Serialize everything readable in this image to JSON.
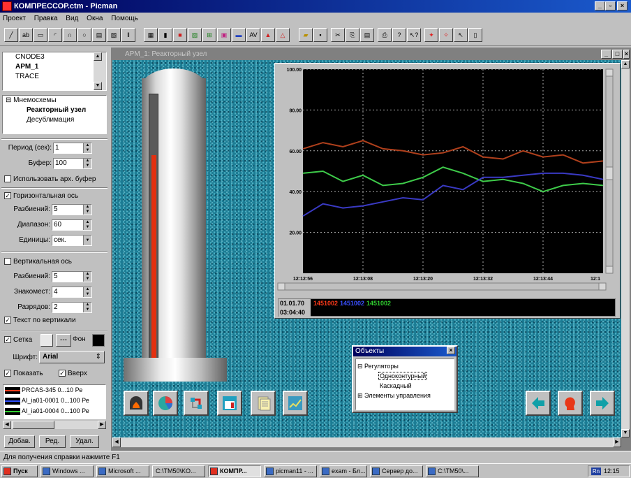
{
  "window": {
    "title": "КОМПРЕССОР.ctm - Picman"
  },
  "menu": [
    "Проект",
    "Правка",
    "Вид",
    "Окна",
    "Помощь"
  ],
  "toolbar_icons": [
    "line",
    "text",
    "rect",
    "arc",
    "curve",
    "ellipse",
    "button",
    "image",
    "bars",
    "grid",
    "panel",
    "meter",
    "chart",
    "layout",
    "indicator",
    "scale",
    "clock",
    "alarm",
    "open",
    "save",
    "cut",
    "copy",
    "paste",
    "print",
    "help",
    "context-help",
    "run",
    "stop",
    "select",
    "page"
  ],
  "tree_nodes": [
    "CNODE3",
    "APM_1",
    "TRACE"
  ],
  "mnemo": {
    "root": "Мнемосхемы",
    "items": [
      "Реакторный узел",
      "Десублимация"
    ]
  },
  "settings": {
    "period_label": "Период (сек):",
    "period_value": "1",
    "buffer_label": "Буфер:",
    "buffer_value": "100",
    "use_arch_buffer": "Использовать арх. буфер",
    "horizontal_axis": "Горизонтальная ось",
    "h_divisions_label": "Разбиений:",
    "h_divisions_value": "5",
    "range_label": "Диапазон:",
    "range_value": "60",
    "units_label": "Единицы:",
    "units_value": "сек.",
    "vertical_axis": "Вертикальная ось",
    "v_divisions_label": "Разбиений:",
    "v_divisions_value": "5",
    "digits_label": "Знакомест:",
    "digits_value": "4",
    "decimals_label": "Разрядов:",
    "decimals_value": "2",
    "text_vertical": "Текст по вертикали",
    "grid_label": "Сетка",
    "grid_style": "---",
    "bg_label": "Фон",
    "font_label": "Шрифт:",
    "font_value": "Arial",
    "show_label": "Показать",
    "top_label": "Вверх"
  },
  "series_list": [
    {
      "tag": "PRCAS-345",
      "range": "0...10",
      "unit": "Ре",
      "color": "#ff3a1a"
    },
    {
      "tag": "AI_ia01-0001",
      "range": "0...100",
      "unit": "Ре",
      "color": "#3050ff"
    },
    {
      "tag": "AI_ia01-0004",
      "range": "0...100",
      "unit": "Ре",
      "color": "#30d030"
    }
  ],
  "panel_buttons": [
    "Добав.",
    "Ред.",
    "Удал."
  ],
  "mdi_title": "APM_1: Реакторный узел",
  "tank": {
    "level": 0.78
  },
  "chart_data": {
    "type": "line",
    "ylim": [
      0,
      100
    ],
    "yticks": [
      "100.00",
      "80.00",
      "60.00",
      "40.00",
      "20.00"
    ],
    "xticks": [
      "12:12:56",
      "12:13:08",
      "12:13:20",
      "12:13:32",
      "12:13:44",
      "12:1"
    ],
    "grid": true,
    "series": [
      {
        "color": "#b0401c",
        "values": [
          61,
          64,
          62,
          65,
          61,
          60,
          58,
          59,
          62,
          57,
          56,
          60,
          57,
          58,
          54,
          55
        ]
      },
      {
        "color": "#3ecb4a",
        "values": [
          49,
          50,
          45,
          48,
          43,
          44,
          47,
          52,
          49,
          45,
          46,
          44,
          40,
          43,
          44,
          43
        ]
      },
      {
        "color": "#3a3ac4",
        "values": [
          28,
          34,
          32,
          33,
          35,
          37,
          36,
          43,
          41,
          47,
          47,
          48,
          49,
          49,
          48,
          46
        ]
      }
    ],
    "legend_times": [
      "01.01.70",
      "03:04:40"
    ],
    "legend_items": [
      {
        "text": "1451002",
        "color": "#ff3a1a"
      },
      {
        "text": "1451002",
        "color": "#3a50ff"
      },
      {
        "text": "1451002",
        "color": "#30d030"
      }
    ]
  },
  "objects_window": {
    "title": "Объекты",
    "items": [
      "Регуляторы",
      "Одноконтурный",
      "Каскадный",
      "Элементы управления"
    ]
  },
  "status": "Для получения справки нажмите F1",
  "taskbar": {
    "start": "Пуск",
    "tasks": [
      "Windows ...",
      "Microsoft ...",
      "C:\\TM50\\KO...",
      "КОМПР...",
      "picman11 - ...",
      "exam - Бл...",
      "Сервер до...",
      "C:\\TM50\\..."
    ],
    "lang": "Rn",
    "clock": "12:15"
  }
}
